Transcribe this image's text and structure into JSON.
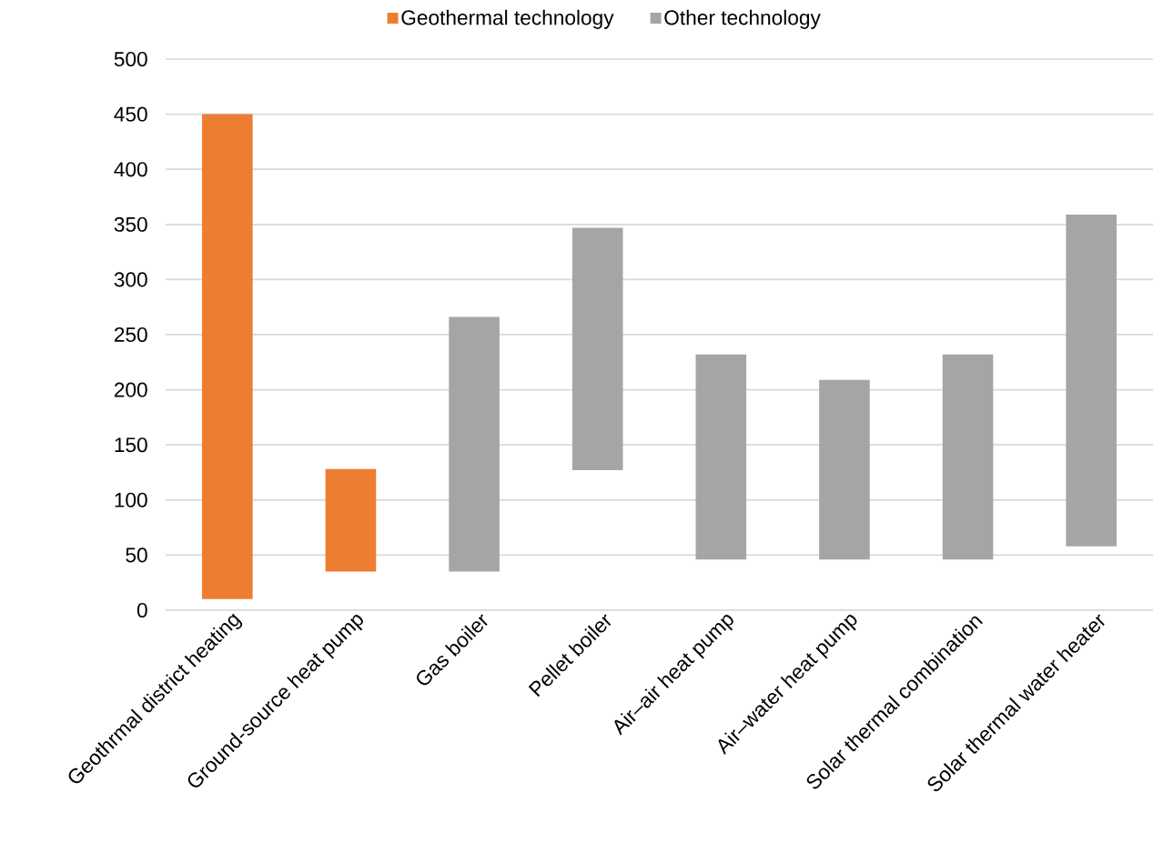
{
  "chart_data": {
    "type": "bar",
    "categories": [
      "Geothrmal district heating",
      "Ground-source heat pump",
      "Gas boiler",
      "Pellet boiler",
      "Air–air heat pump",
      "Air–water heat pump",
      "Solar thermal combination",
      "Solar thermal water heater"
    ],
    "series": [
      {
        "name": "Geothermal technology",
        "color": "#ed7d31",
        "base": [
          10,
          35,
          null,
          null,
          null,
          null,
          null,
          null
        ],
        "values": [
          440,
          93,
          null,
          null,
          null,
          null,
          null,
          null
        ]
      },
      {
        "name": "Other technology",
        "color": "#a5a5a5",
        "base": [
          null,
          null,
          35,
          127,
          46,
          46,
          46,
          58
        ],
        "values": [
          null,
          null,
          231,
          220,
          186,
          163,
          186,
          301
        ]
      }
    ],
    "ylim": [
      0,
      500
    ],
    "yticks": [
      0,
      50,
      100,
      150,
      200,
      250,
      300,
      350,
      400,
      450,
      500
    ],
    "grid": "y",
    "legend": "top"
  }
}
